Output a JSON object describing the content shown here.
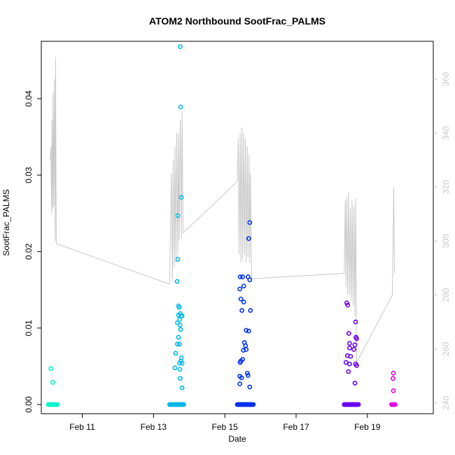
{
  "chart_data": {
    "type": "scatter",
    "title": "ATOM2 Northbound SootFrac_PALMS",
    "xlabel": "Date",
    "ylabel": "SootFrac_PALMS",
    "xlim": [
      9.85,
      20.85
    ],
    "ylim": [
      -0.0012,
      0.0475
    ],
    "y2lim": [
      236.0,
      374.0
    ],
    "grid": false,
    "x_ticks": [
      {
        "value": 11,
        "label": "Feb 11"
      },
      {
        "value": 13,
        "label": "Feb 13"
      },
      {
        "value": 15,
        "label": "Feb 15"
      },
      {
        "value": 17,
        "label": "Feb 17"
      },
      {
        "value": 19,
        "label": "Feb 19"
      }
    ],
    "y_ticks": [
      {
        "value": 0.0,
        "label": "0.00"
      },
      {
        "value": 0.01,
        "label": "0.01"
      },
      {
        "value": 0.02,
        "label": "0.02"
      },
      {
        "value": 0.03,
        "label": "0.03"
      },
      {
        "value": 0.04,
        "label": "0.04"
      }
    ],
    "y2_ticks": [
      {
        "value": 240,
        "label": "240"
      },
      {
        "value": 260,
        "label": "260"
      },
      {
        "value": 280,
        "label": "280"
      },
      {
        "value": 300,
        "label": "300"
      },
      {
        "value": 320,
        "label": "320"
      },
      {
        "value": 340,
        "label": "340"
      },
      {
        "value": 360,
        "label": "360"
      }
    ],
    "colors": {
      "line": "#c8c8c8",
      "frame": "#000000",
      "group_1": "#00f5c8",
      "group_2": "#00b8e6",
      "group_3": "#0033ee",
      "group_4": "#6a00f0",
      "group_5": "#e000e0"
    },
    "groups": [
      {
        "color": "#00f5c8",
        "zero_range": [
          10.05,
          10.3
        ],
        "points": [
          [
            10.12,
            0.0047
          ],
          [
            10.17,
            0.0029
          ]
        ]
      },
      {
        "color": "#00b8e6",
        "zero_range": [
          13.45,
          13.85
        ],
        "points": [
          [
            13.75,
            0.0468
          ],
          [
            13.76,
            0.0389
          ],
          [
            13.78,
            0.0271
          ],
          [
            13.68,
            0.0247
          ],
          [
            13.68,
            0.019
          ],
          [
            13.66,
            0.0161
          ],
          [
            13.7,
            0.0129
          ],
          [
            13.72,
            0.0127
          ],
          [
            13.75,
            0.0119
          ],
          [
            13.7,
            0.0117
          ],
          [
            13.78,
            0.0116
          ],
          [
            13.8,
            0.0116
          ],
          [
            13.73,
            0.0111
          ],
          [
            13.67,
            0.0107
          ],
          [
            13.74,
            0.0104
          ],
          [
            13.76,
            0.0098
          ],
          [
            13.7,
            0.0088
          ],
          [
            13.73,
            0.0079
          ],
          [
            13.67,
            0.0079
          ],
          [
            13.62,
            0.0067
          ],
          [
            13.78,
            0.0061
          ],
          [
            13.77,
            0.0057
          ],
          [
            13.8,
            0.0054
          ],
          [
            13.73,
            0.0054
          ],
          [
            13.6,
            0.0048
          ],
          [
            13.74,
            0.0046
          ],
          [
            13.75,
            0.0034
          ],
          [
            13.8,
            0.0022
          ]
        ]
      },
      {
        "color": "#0033ee",
        "zero_range": [
          15.35,
          15.8
        ],
        "points": [
          [
            15.7,
            0.0238
          ],
          [
            15.67,
            0.0217
          ],
          [
            15.43,
            0.0167
          ],
          [
            15.5,
            0.0167
          ],
          [
            15.65,
            0.0167
          ],
          [
            15.7,
            0.0163
          ],
          [
            15.53,
            0.0155
          ],
          [
            15.42,
            0.0151
          ],
          [
            15.45,
            0.0138
          ],
          [
            15.53,
            0.0134
          ],
          [
            15.48,
            0.0123
          ],
          [
            15.72,
            0.0123
          ],
          [
            15.6,
            0.0097
          ],
          [
            15.67,
            0.0096
          ],
          [
            15.55,
            0.0081
          ],
          [
            15.58,
            0.0077
          ],
          [
            15.52,
            0.0071
          ],
          [
            15.6,
            0.0072
          ],
          [
            15.5,
            0.0059
          ],
          [
            15.45,
            0.0057
          ],
          [
            15.43,
            0.0055
          ],
          [
            15.63,
            0.0041
          ],
          [
            15.65,
            0.0038
          ],
          [
            15.42,
            0.0037
          ],
          [
            15.47,
            0.0035
          ],
          [
            15.42,
            0.0027
          ],
          [
            15.7,
            0.0023
          ]
        ]
      },
      {
        "color": "#6a00f0",
        "zero_range": [
          18.35,
          18.75
        ],
        "points": [
          [
            18.42,
            0.0133
          ],
          [
            18.45,
            0.013
          ],
          [
            18.67,
            0.0108
          ],
          [
            18.48,
            0.0093
          ],
          [
            18.68,
            0.0088
          ],
          [
            18.7,
            0.0086
          ],
          [
            18.5,
            0.008
          ],
          [
            18.65,
            0.0078
          ],
          [
            18.5,
            0.0074
          ],
          [
            18.62,
            0.0072
          ],
          [
            18.44,
            0.0064
          ],
          [
            18.53,
            0.0063
          ],
          [
            18.4,
            0.0055
          ],
          [
            18.5,
            0.0053
          ],
          [
            18.67,
            0.0053
          ],
          [
            18.7,
            0.0051
          ],
          [
            18.47,
            0.0043
          ],
          [
            18.65,
            0.0028
          ]
        ]
      },
      {
        "color": "#e000e0",
        "zero_range": [
          19.68,
          19.78
        ],
        "points": [
          [
            19.73,
            0.0041
          ],
          [
            19.72,
            0.0034
          ],
          [
            19.73,
            0.0018
          ]
        ]
      }
    ],
    "line_series": {
      "color": "#c8c8c8",
      "axis": "right",
      "segments": [
        [
          [
            10.1,
            330
          ],
          [
            10.12,
            335
          ],
          [
            10.14,
            310
          ],
          [
            10.15,
            345
          ],
          [
            10.17,
            312
          ],
          [
            10.18,
            355
          ],
          [
            10.2,
            313
          ],
          [
            10.22,
            360
          ],
          [
            10.24,
            300
          ],
          [
            10.25,
            368
          ],
          [
            10.27,
            299
          ]
        ],
        [
          [
            10.27,
            299
          ],
          [
            13.45,
            284
          ]
        ],
        [
          [
            13.45,
            284
          ],
          [
            13.5,
            325
          ],
          [
            13.53,
            285
          ],
          [
            13.55,
            330
          ],
          [
            13.58,
            290
          ],
          [
            13.6,
            335
          ],
          [
            13.63,
            292
          ],
          [
            13.65,
            340
          ],
          [
            13.68,
            295
          ],
          [
            13.7,
            340
          ],
          [
            13.72,
            300
          ],
          [
            13.75,
            345
          ],
          [
            13.78,
            301
          ],
          [
            13.8,
            348
          ],
          [
            13.83,
            303
          ]
        ],
        [
          [
            13.83,
            303
          ],
          [
            15.35,
            322
          ]
        ],
        [
          [
            15.35,
            322
          ],
          [
            15.38,
            338
          ],
          [
            15.4,
            295
          ],
          [
            15.43,
            340
          ],
          [
            15.45,
            292
          ],
          [
            15.48,
            342
          ],
          [
            15.5,
            293
          ],
          [
            15.53,
            340
          ],
          [
            15.55,
            295
          ],
          [
            15.58,
            338
          ],
          [
            15.6,
            292
          ],
          [
            15.63,
            335
          ],
          [
            15.65,
            294
          ],
          [
            15.68,
            332
          ],
          [
            15.7,
            292
          ],
          [
            15.72,
            325
          ],
          [
            15.75,
            286
          ]
        ],
        [
          [
            15.75,
            286
          ],
          [
            18.35,
            288
          ]
        ],
        [
          [
            18.35,
            288
          ],
          [
            18.38,
            315
          ],
          [
            18.4,
            283
          ],
          [
            18.42,
            316
          ],
          [
            18.45,
            280
          ],
          [
            18.47,
            318
          ],
          [
            18.5,
            280
          ],
          [
            18.52,
            312
          ],
          [
            18.55,
            278
          ],
          [
            18.57,
            315
          ],
          [
            18.6,
            276
          ],
          [
            18.62,
            313
          ],
          [
            18.65,
            272
          ],
          [
            18.67,
            316
          ],
          [
            18.7,
            255
          ]
        ],
        [
          [
            18.7,
            255
          ],
          [
            19.7,
            280
          ]
        ],
        [
          [
            19.7,
            280
          ],
          [
            19.72,
            300
          ],
          [
            19.74,
            320
          ],
          [
            19.76,
            288
          ]
        ]
      ]
    }
  }
}
